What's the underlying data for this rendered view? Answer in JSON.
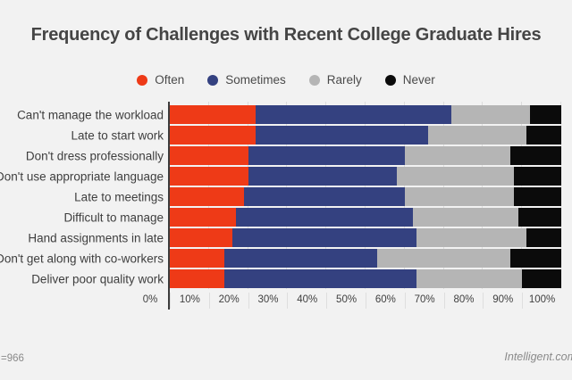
{
  "page": {
    "background": "#F2F2F2"
  },
  "header": {
    "title": "Frequency of Challenges with Recent College Graduate Hires"
  },
  "legend": {
    "items": [
      {
        "label": "Often",
        "color": "#EE3A17"
      },
      {
        "label": "Sometimes",
        "color": "#344180"
      },
      {
        "label": "Rarely",
        "color": "#B5B5B5"
      },
      {
        "label": "Never",
        "color": "#0B0B0B"
      }
    ]
  },
  "chart_data": {
    "type": "bar",
    "orientation": "horizontal",
    "stacked": true,
    "title": "Frequency of Challenges with Recent College Graduate Hires",
    "categories": [
      "Can't manage the workload",
      "Late to start work",
      "Don't dress professionally",
      "Don't use appropriate language",
      "Late to meetings",
      "Difficult to manage",
      "Hand assignments in late",
      "Don't get along with co-workers",
      "Deliver poor quality work"
    ],
    "series": [
      {
        "name": "Often",
        "color": "#EE3A17",
        "values": [
          22,
          22,
          20,
          20,
          19,
          17,
          16,
          14,
          14
        ]
      },
      {
        "name": "Sometimes",
        "color": "#344180",
        "values": [
          50,
          44,
          40,
          38,
          41,
          45,
          47,
          39,
          49
        ]
      },
      {
        "name": "Rarely",
        "color": "#B5B5B5",
        "values": [
          20,
          25,
          27,
          30,
          28,
          27,
          28,
          34,
          27
        ]
      },
      {
        "name": "Never",
        "color": "#0B0B0B",
        "values": [
          8,
          9,
          13,
          12,
          12,
          11,
          9,
          13,
          10
        ]
      }
    ],
    "x_ticks": [
      "0%",
      "10%",
      "20%",
      "30%",
      "40%",
      "50%",
      "60%",
      "70%",
      "80%",
      "90%",
      "100%"
    ],
    "xlim": [
      0,
      100
    ],
    "grid": true,
    "legend_position": "top"
  },
  "footer": {
    "sample_size": "=966",
    "source": "Intelligent.com"
  }
}
